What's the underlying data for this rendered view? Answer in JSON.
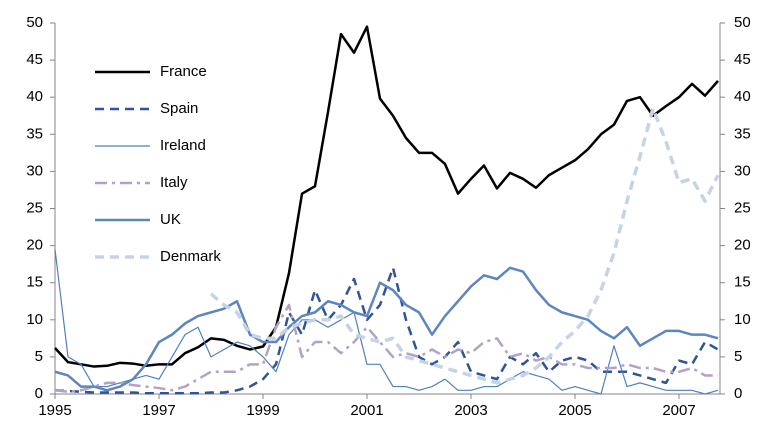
{
  "chart_data": {
    "type": "line",
    "x": [
      1995,
      1995.25,
      1995.5,
      1995.75,
      1996,
      1996.25,
      1996.5,
      1996.75,
      1997,
      1997.25,
      1997.5,
      1997.75,
      1998,
      1998.25,
      1998.5,
      1998.75,
      1999,
      1999.25,
      1999.5,
      1999.75,
      2000,
      2000.25,
      2000.5,
      2000.75,
      2001,
      2001.25,
      2001.5,
      2001.75,
      2002,
      2002.25,
      2002.5,
      2002.75,
      2003,
      2003.25,
      2003.5,
      2003.75,
      2004,
      2004.25,
      2004.5,
      2004.75,
      2005,
      2005.25,
      2005.5,
      2005.75,
      2006,
      2006.25,
      2006.5,
      2006.75,
      2007,
      2007.25,
      2007.5,
      2007.75
    ],
    "xlim": [
      1995,
      2007.75
    ],
    "xticks": [
      1995,
      1997,
      1999,
      2001,
      2003,
      2005,
      2007
    ],
    "ylim": [
      0,
      50
    ],
    "yticks": [
      0,
      5,
      10,
      15,
      20,
      25,
      30,
      35,
      40,
      45,
      50
    ],
    "y2lim": [
      0,
      50
    ],
    "y2ticks": [
      0,
      5,
      10,
      15,
      20,
      25,
      30,
      35,
      40,
      45,
      50
    ],
    "series": [
      {
        "name": "France",
        "color": "#000000",
        "dash": "solid",
        "width": 2.5,
        "values": [
          6.2,
          4.3,
          4,
          3.7,
          3.8,
          4.2,
          4.1,
          3.8,
          4,
          4,
          5.5,
          6.3,
          7.5,
          7.3,
          6.5,
          6,
          6.4,
          9,
          16.3,
          27,
          28,
          38,
          48.5,
          46,
          49.5,
          39.8,
          37.5,
          34.5,
          32.5,
          32.5,
          31,
          27,
          29,
          30.8,
          27.7,
          29.8,
          29,
          27.8,
          29.5,
          30.5,
          31.5,
          33,
          35,
          36.3,
          39.5,
          40,
          37.5,
          38.8,
          40,
          41.8,
          40.2,
          42.2
        ]
      },
      {
        "name": "Spain",
        "color": "#2e5597",
        "dash": "dash",
        "width": 2.5,
        "values": [
          0.5,
          0.4,
          0.3,
          0.2,
          0.2,
          0.2,
          0.2,
          0.1,
          0.1,
          0.1,
          0.1,
          0.1,
          0.2,
          0.2,
          0.5,
          1,
          2,
          4,
          11,
          8,
          14,
          10,
          12,
          15.5,
          10,
          12,
          17,
          10,
          5,
          4,
          5,
          7,
          3,
          2.5,
          2,
          5,
          4,
          5.5,
          3,
          4.5,
          5,
          4.5,
          3,
          3,
          3,
          2.5,
          2,
          1.5,
          4.5,
          4,
          7,
          6
        ]
      },
      {
        "name": "Ireland",
        "color": "#4f81bd",
        "dash": "solid",
        "width": 1.2,
        "values": [
          19.5,
          5,
          4,
          1,
          1,
          1.5,
          2,
          2.5,
          2,
          5,
          8,
          9,
          5,
          6,
          7,
          6.5,
          5,
          3,
          8,
          10,
          10,
          9,
          10,
          11,
          4,
          4,
          1,
          1,
          0.5,
          1,
          2,
          0.5,
          0.5,
          1,
          1,
          2,
          3,
          2.5,
          2,
          0.5,
          1,
          0.5,
          0,
          6.5,
          1,
          1.5,
          1,
          0.5,
          0.5,
          0.5,
          0,
          0.5
        ]
      },
      {
        "name": "Italy",
        "color": "#b3a2c7",
        "dash": "dashdot",
        "width": 2.5,
        "values": [
          0.5,
          0.3,
          0.5,
          1,
          1.5,
          1.5,
          1.2,
          1,
          0.8,
          0.5,
          1,
          2,
          3,
          3,
          3,
          4,
          4,
          9,
          12,
          5,
          7,
          7,
          5.5,
          7,
          9,
          7,
          5,
          5.5,
          5,
          6,
          5,
          6,
          5.5,
          7,
          7.5,
          5,
          5.5,
          4.5,
          5,
          4,
          4,
          3.5,
          3.5,
          3.5,
          4,
          3.5,
          3.5,
          3,
          3,
          3.5,
          2.5,
          2.5
        ]
      },
      {
        "name": "UK",
        "color": "#5b86c0",
        "dash": "solid",
        "width": 2.5,
        "values": [
          3,
          2.5,
          1,
          1,
          0.5,
          1,
          2,
          4,
          7,
          8,
          9.5,
          10.5,
          11,
          11.5,
          12.5,
          8,
          7,
          7,
          9,
          10.5,
          11,
          12.5,
          12,
          11,
          10.5,
          15,
          14,
          12,
          11,
          8,
          10.5,
          12.5,
          14.5,
          16,
          15.5,
          17,
          16.5,
          14,
          12,
          11,
          10.5,
          10,
          8.5,
          7.5,
          9,
          6.5,
          7.5,
          8.5,
          8.5,
          8,
          8,
          7.5
        ]
      },
      {
        "name": "Denmark",
        "color": "#c5d3e6",
        "dash": "dash",
        "width": 3.5,
        "values": [
          null,
          null,
          null,
          null,
          null,
          null,
          null,
          null,
          null,
          null,
          null,
          null,
          13.5,
          12,
          11,
          8,
          7.5,
          7.5,
          9,
          9.5,
          10,
          10,
          10.5,
          8,
          7.5,
          7,
          7.5,
          5,
          4.5,
          4,
          3.5,
          3,
          2.5,
          2,
          1.5,
          2,
          2.5,
          3.5,
          5,
          7,
          8.5,
          10.5,
          14,
          19,
          26,
          32,
          38.5,
          34,
          28.5,
          29,
          26,
          29.5
        ]
      }
    ]
  }
}
